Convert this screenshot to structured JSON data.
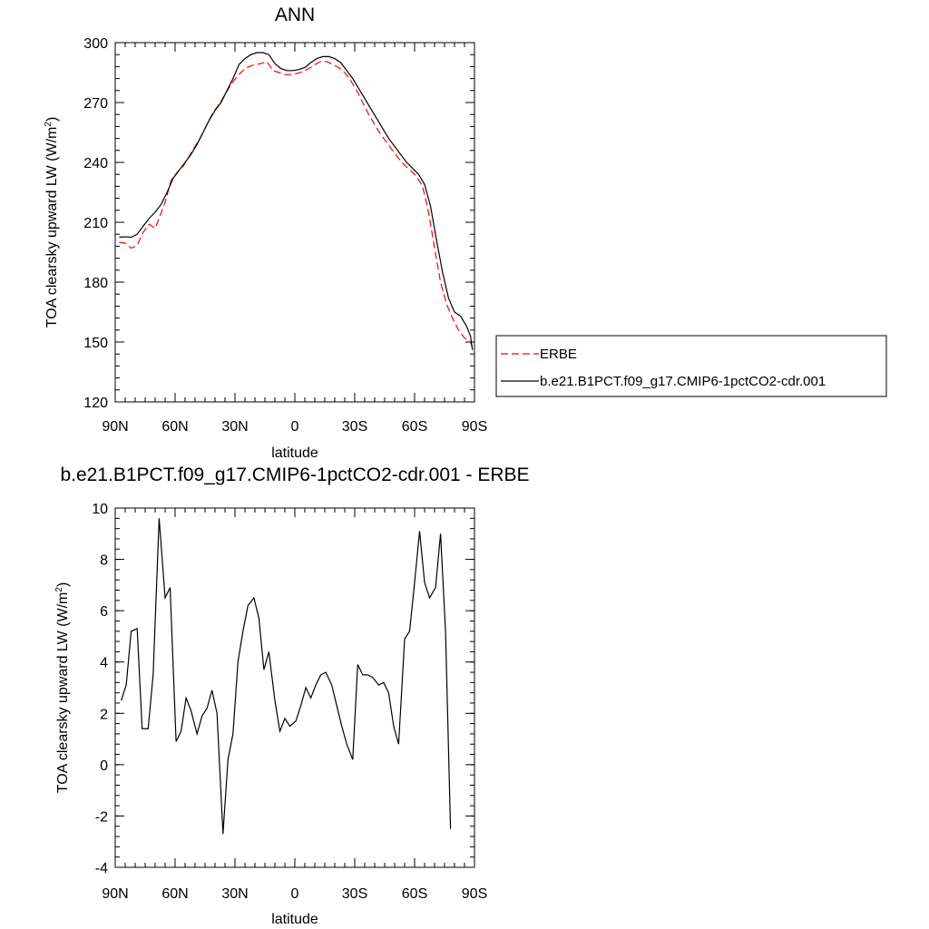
{
  "chart_data": [
    {
      "type": "line",
      "title": "ANN",
      "xlabel": "latitude",
      "ylabel": "TOA clearsky upward LW (W/m2)",
      "ylabel_parts": {
        "main": "TOA clearsky upward LW (W/m",
        "sup": "2",
        "close": ")"
      },
      "xlim": [
        90,
        -90
      ],
      "ylim": [
        120,
        300
      ],
      "x_ticks": [
        {
          "value": 90,
          "label": "90N"
        },
        {
          "value": 60,
          "label": "60N"
        },
        {
          "value": 30,
          "label": "30N"
        },
        {
          "value": 0,
          "label": "0"
        },
        {
          "value": -30,
          "label": "30S"
        },
        {
          "value": -60,
          "label": "60S"
        },
        {
          "value": -90,
          "label": "90S"
        }
      ],
      "y_ticks": [
        {
          "value": 300,
          "label": "300"
        },
        {
          "value": 270,
          "label": "270"
        },
        {
          "value": 240,
          "label": "240"
        },
        {
          "value": 210,
          "label": "210"
        },
        {
          "value": 180,
          "label": "180"
        },
        {
          "value": 150,
          "label": "150"
        },
        {
          "value": 120,
          "label": "120"
        }
      ],
      "legend": {
        "position": "right"
      },
      "series": [
        {
          "name": "ERBE",
          "color": "#ff0000",
          "dashed": true,
          "points": [
            [
              88,
              200
            ],
            [
              85,
              199.5
            ],
            [
              82,
              197
            ],
            [
              79,
              198.5
            ],
            [
              76,
              205
            ],
            [
              73,
              209
            ],
            [
              70,
              207
            ],
            [
              68,
              212
            ],
            [
              65,
              220
            ],
            [
              62,
              231
            ],
            [
              59,
              235
            ],
            [
              56,
              238
            ],
            [
              53,
              243
            ],
            [
              50,
              248
            ],
            [
              47,
              253
            ],
            [
              44,
              259
            ],
            [
              41,
              265
            ],
            [
              38,
              269
            ],
            [
              35,
              274
            ],
            [
              32,
              279
            ],
            [
              29,
              283
            ],
            [
              26,
              286
            ],
            [
              23,
              288
            ],
            [
              20,
              289
            ],
            [
              17,
              289.5
            ],
            [
              14,
              290.5
            ],
            [
              11,
              286
            ],
            [
              8,
              285
            ],
            [
              5,
              284
            ],
            [
              2,
              284
            ],
            [
              -1,
              284.5
            ],
            [
              -4,
              285.5
            ],
            [
              -7,
              287
            ],
            [
              -10,
              289
            ],
            [
              -13,
              290.5
            ],
            [
              -16,
              290.5
            ],
            [
              -19,
              289
            ],
            [
              -22,
              287.5
            ],
            [
              -25,
              285
            ],
            [
              -28,
              281
            ],
            [
              -31,
              276
            ],
            [
              -34,
              270
            ],
            [
              -37,
              264
            ],
            [
              -40,
              259
            ],
            [
              -43,
              254
            ],
            [
              -46,
              250
            ],
            [
              -49,
              246
            ],
            [
              -52,
              242
            ],
            [
              -55,
              238.5
            ],
            [
              -58,
              236
            ],
            [
              -61,
              233
            ],
            [
              -64,
              228
            ],
            [
              -67,
              215
            ],
            [
              -70,
              197
            ],
            [
              -73,
              180
            ],
            [
              -76,
              169
            ],
            [
              -79,
              162
            ],
            [
              -82,
              156
            ],
            [
              -85,
              152
            ],
            [
              -88,
              150
            ],
            [
              -89,
              147
            ]
          ]
        },
        {
          "name": "b.e21.B1PCT.f09_g17.CMIP6-1pctCO2-cdr.001",
          "color": "#000000",
          "dashed": false,
          "points": [
            [
              88,
              202.5
            ],
            [
              85,
              202.7
            ],
            [
              82,
              202.5
            ],
            [
              79,
              204
            ],
            [
              76,
              208
            ],
            [
              73,
              212
            ],
            [
              70,
              215
            ],
            [
              67,
              219
            ],
            [
              64,
              225
            ],
            [
              61,
              232
            ],
            [
              58,
              236
            ],
            [
              55,
              240
            ],
            [
              52,
              244
            ],
            [
              49,
              249
            ],
            [
              46,
              255
            ],
            [
              43,
              261
            ],
            [
              40,
              266
            ],
            [
              37,
              270
            ],
            [
              34,
              276
            ],
            [
              31,
              282
            ],
            [
              28,
              289
            ],
            [
              25,
              292
            ],
            [
              22,
              294
            ],
            [
              19,
              295
            ],
            [
              16,
              295
            ],
            [
              13,
              294
            ],
            [
              10,
              289.5
            ],
            [
              7,
              287
            ],
            [
              4,
              286
            ],
            [
              1,
              286
            ],
            [
              -2,
              286.5
            ],
            [
              -5,
              287.5
            ],
            [
              -8,
              290
            ],
            [
              -11,
              292
            ],
            [
              -14,
              293
            ],
            [
              -17,
              293
            ],
            [
              -20,
              292
            ],
            [
              -23,
              290
            ],
            [
              -26,
              286
            ],
            [
              -29,
              282
            ],
            [
              -32,
              277
            ],
            [
              -35,
              272
            ],
            [
              -38,
              267
            ],
            [
              -41,
              262
            ],
            [
              -44,
              257
            ],
            [
              -47,
              252
            ],
            [
              -50,
              248
            ],
            [
              -53,
              244
            ],
            [
              -56,
              240
            ],
            [
              -59,
              237
            ],
            [
              -62,
              234
            ],
            [
              -65,
              229
            ],
            [
              -68,
              218
            ],
            [
              -71,
              201
            ],
            [
              -74,
              185
            ],
            [
              -77,
              172
            ],
            [
              -80,
              165
            ],
            [
              -83,
              163
            ],
            [
              -86,
              158
            ],
            [
              -88,
              153
            ],
            [
              -89,
              146
            ]
          ]
        }
      ]
    },
    {
      "type": "line",
      "title": "b.e21.B1PCT.f09_g17.CMIP6-1pctCO2-cdr.001 - ERBE",
      "xlabel": "latitude",
      "ylabel": "TOA clearsky upward LW (W/m2)",
      "ylabel_parts": {
        "main": "TOA clearsky upward LW (W/m",
        "sup": "2",
        "close": ")"
      },
      "xlim": [
        90,
        -90
      ],
      "ylim": [
        -4,
        10
      ],
      "x_ticks": [
        {
          "value": 90,
          "label": "90N"
        },
        {
          "value": 60,
          "label": "60N"
        },
        {
          "value": 30,
          "label": "30N"
        },
        {
          "value": 0,
          "label": "0"
        },
        {
          "value": -30,
          "label": "30S"
        },
        {
          "value": -60,
          "label": "60S"
        },
        {
          "value": -90,
          "label": "90S"
        }
      ],
      "y_ticks": [
        {
          "value": 10,
          "label": "10"
        },
        {
          "value": 8,
          "label": "8"
        },
        {
          "value": 6,
          "label": "6"
        },
        {
          "value": 4,
          "label": "4"
        },
        {
          "value": 2,
          "label": "2"
        },
        {
          "value": 0,
          "label": "0"
        },
        {
          "value": -2,
          "label": "-2"
        },
        {
          "value": -4,
          "label": "-4"
        }
      ],
      "series": [
        {
          "color": "#000000",
          "dashed": false,
          "points": [
            [
              87,
              2.5
            ],
            [
              84.5,
              3.1
            ],
            [
              82,
              5.2
            ],
            [
              79,
              5.3
            ],
            [
              76.5,
              1.4
            ],
            [
              73.5,
              1.4
            ],
            [
              71,
              3.5
            ],
            [
              68,
              9.6
            ],
            [
              65,
              6.5
            ],
            [
              62.5,
              6.9
            ],
            [
              59.5,
              0.9
            ],
            [
              57,
              1.3
            ],
            [
              54.5,
              2.6
            ],
            [
              52,
              2.1
            ],
            [
              49,
              1.2
            ],
            [
              46.5,
              1.9
            ],
            [
              44,
              2.2
            ],
            [
              41.5,
              2.9
            ],
            [
              39,
              2.0
            ],
            [
              36,
              -2.7
            ],
            [
              33.5,
              0.2
            ],
            [
              31,
              1.2
            ],
            [
              28.5,
              4.0
            ],
            [
              26,
              5.2
            ],
            [
              23.5,
              6.2
            ],
            [
              20.5,
              6.5
            ],
            [
              18,
              5.7
            ],
            [
              15.5,
              3.7
            ],
            [
              13,
              4.4
            ],
            [
              10,
              2.5
            ],
            [
              7.5,
              1.3
            ],
            [
              5,
              1.8
            ],
            [
              2.5,
              1.5
            ],
            [
              -0.5,
              1.7
            ],
            [
              -3,
              2.3
            ],
            [
              -5.5,
              3.0
            ],
            [
              -8,
              2.6
            ],
            [
              -10.5,
              3.1
            ],
            [
              -13,
              3.5
            ],
            [
              -15.5,
              3.6
            ],
            [
              -18.5,
              3.1
            ],
            [
              -21,
              2.3
            ],
            [
              -23.5,
              1.5
            ],
            [
              -26,
              0.8
            ],
            [
              -29,
              0.2
            ],
            [
              -31.5,
              3.9
            ],
            [
              -34,
              3.5
            ],
            [
              -36.5,
              3.5
            ],
            [
              -39,
              3.4
            ],
            [
              -42,
              3.1
            ],
            [
              -44.5,
              3.2
            ],
            [
              -47,
              2.8
            ],
            [
              -49.5,
              1.5
            ],
            [
              -52,
              0.8
            ],
            [
              -55,
              4.9
            ],
            [
              -57.5,
              5.2
            ],
            [
              -60,
              7.1
            ],
            [
              -62.5,
              9.1
            ],
            [
              -65,
              7.1
            ],
            [
              -67.5,
              6.5
            ],
            [
              -70.5,
              6.9
            ],
            [
              -73,
              9.0
            ],
            [
              -75.5,
              5.2
            ],
            [
              -78,
              -2.5
            ]
          ]
        }
      ]
    }
  ]
}
